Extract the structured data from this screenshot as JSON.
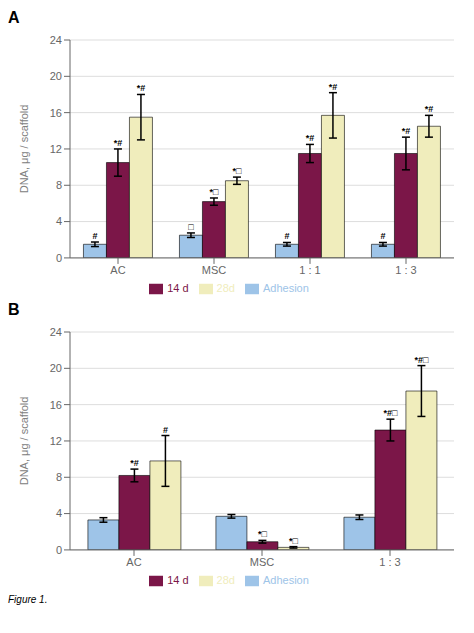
{
  "chart_data": [
    {
      "type": "bar",
      "title": "A",
      "categories": [
        "AC",
        "MSC",
        "1 : 1",
        "1 : 3"
      ],
      "ylabel": "DNA, μg / scaffold",
      "ylim": [
        0,
        24
      ],
      "yticks": [
        0,
        4,
        8,
        12,
        16,
        20,
        24
      ],
      "grid": true,
      "legend": "bottom",
      "series": [
        {
          "name": "Adhesion",
          "color": "#9ec4e8",
          "values": [
            1.5,
            2.5,
            1.5,
            1.5
          ],
          "errors": [
            0.25,
            0.25,
            0.2,
            0.2
          ],
          "annotations": [
            "#",
            "□",
            "#",
            "#"
          ]
        },
        {
          "name": "14 d",
          "color": "#7b1648",
          "values": [
            10.5,
            6.2,
            11.5,
            11.5
          ],
          "errors": [
            1.5,
            0.4,
            1.0,
            1.8
          ],
          "annotations": [
            "*#",
            "*□",
            "*#",
            "*#"
          ]
        },
        {
          "name": "28d",
          "color": "#f0edbc",
          "values": [
            15.5,
            8.5,
            15.7,
            14.5
          ],
          "errors": [
            2.5,
            0.4,
            2.5,
            1.2
          ],
          "annotations": [
            "*#",
            "*□",
            "*#",
            "*#"
          ]
        }
      ]
    },
    {
      "type": "bar",
      "title": "B",
      "categories": [
        "AC",
        "MSC",
        "1 : 3"
      ],
      "ylabel": "DNA, μg / scaffold",
      "ylim": [
        0,
        24
      ],
      "yticks": [
        0,
        4,
        8,
        12,
        16,
        20,
        24
      ],
      "grid": true,
      "legend": "bottom",
      "series": [
        {
          "name": "Adhesion",
          "color": "#9ec4e8",
          "values": [
            3.3,
            3.7,
            3.6
          ],
          "errors": [
            0.25,
            0.2,
            0.25
          ],
          "annotations": [
            null,
            null,
            null
          ]
        },
        {
          "name": "14 d",
          "color": "#7b1648",
          "values": [
            8.2,
            0.9,
            13.2
          ],
          "errors": [
            0.7,
            0.15,
            1.2
          ],
          "annotations": [
            "*#",
            "*□",
            "*#□"
          ]
        },
        {
          "name": "28d",
          "color": "#f0edbc",
          "values": [
            9.8,
            0.28,
            17.5
          ],
          "errors": [
            2.8,
            0.08,
            2.8
          ],
          "annotations": [
            "#",
            "*□",
            "*#□"
          ]
        }
      ]
    }
  ],
  "caption": "Figure 1."
}
